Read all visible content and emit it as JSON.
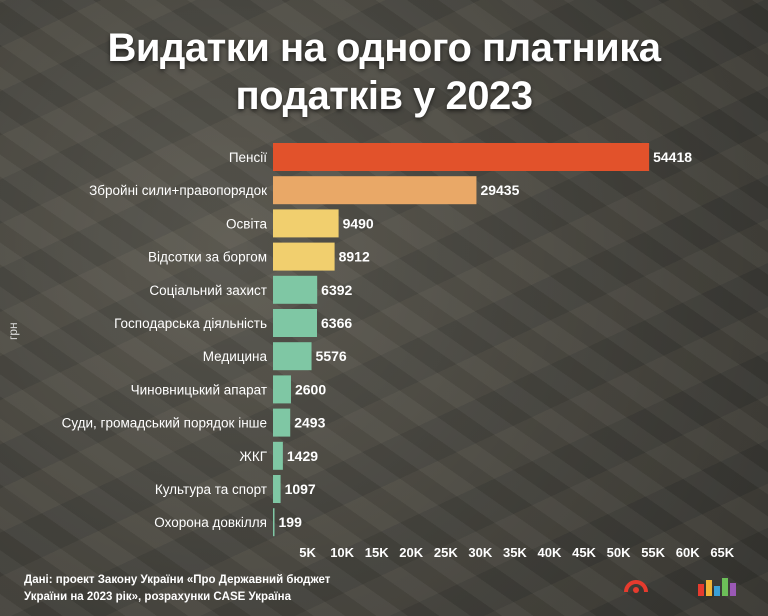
{
  "title": {
    "line1": "Видатки на одного платника",
    "line2": "податків у 2023"
  },
  "ylabel": "грн",
  "source": {
    "line1": "Дані: проект Закону України «Про Державний бюджет",
    "line2": "України на 2023 рік», розрахунки CASE Україна"
  },
  "chart_data": {
    "type": "bar",
    "orientation": "horizontal",
    "title": "Видатки на одного платника податків у 2023",
    "ylabel": "грн",
    "categories": [
      "Пенсії",
      "Збройні сили+правопорядок",
      "Освіта",
      "Відсотки за боргом",
      "Соціальний захист",
      "Господарська діяльність",
      "Медицина",
      "Чиновницький апарат",
      "Суди, громадський порядок інше",
      "ЖКГ",
      "Культура та спорт",
      "Охорона довкілля"
    ],
    "values": [
      54418,
      29435,
      9490,
      8912,
      6392,
      6366,
      5576,
      2600,
      2493,
      1429,
      1097,
      199
    ],
    "colors": [
      "#e2522b",
      "#e9a867",
      "#f1cf6e",
      "#f1cf6e",
      "#7fc7a4",
      "#7fc7a4",
      "#7fc7a4",
      "#7fc7a4",
      "#7fc7a4",
      "#7fc7a4",
      "#7fc7a4",
      "#7fc7a4"
    ],
    "xlim": [
      0,
      68000
    ],
    "xticks": [
      5000,
      10000,
      15000,
      20000,
      25000,
      30000,
      35000,
      40000,
      45000,
      50000,
      55000,
      60000,
      65000
    ],
    "xtick_labels": [
      "5K",
      "10K",
      "15K",
      "20K",
      "25K",
      "30K",
      "35K",
      "40K",
      "45K",
      "50K",
      "55K",
      "60K",
      "65K"
    ],
    "grid": false
  }
}
